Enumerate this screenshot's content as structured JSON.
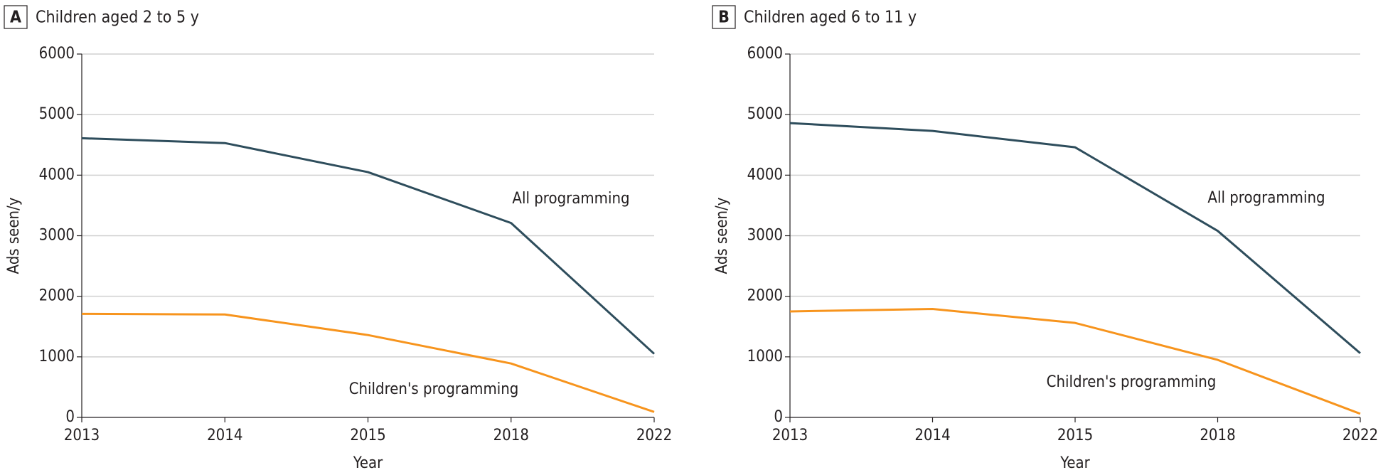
{
  "chart_data": [
    {
      "type": "line",
      "panel": "A",
      "title": "Children aged 2 to 5 y",
      "x_label": "Year",
      "y_label": "Ads seen/y",
      "categories": [
        "2013",
        "2014",
        "2015",
        "2018",
        "2022"
      ],
      "series": [
        {
          "name": "All programming",
          "color": "#2e4d5c",
          "values": [
            4610,
            4530,
            4050,
            3210,
            1050
          ]
        },
        {
          "name": "Children's programming",
          "color": "#f7941d",
          "values": [
            1710,
            1700,
            1360,
            890,
            90
          ]
        }
      ],
      "ylim": [
        0,
        6000
      ],
      "yticks": [
        0,
        1000,
        2000,
        3000,
        4000,
        5000,
        6000
      ],
      "grid": true
    },
    {
      "type": "line",
      "panel": "B",
      "title": "Children aged 6 to 11 y",
      "x_label": "Year",
      "y_label": "Ads seen/y",
      "categories": [
        "2013",
        "2014",
        "2015",
        "2018",
        "2022"
      ],
      "series": [
        {
          "name": "All programming",
          "color": "#2e4d5c",
          "values": [
            4860,
            4730,
            4460,
            3080,
            1060
          ]
        },
        {
          "name": "Children's programming",
          "color": "#f7941d",
          "values": [
            1750,
            1790,
            1560,
            950,
            60
          ]
        }
      ],
      "ylim": [
        0,
        6000
      ],
      "yticks": [
        0,
        1000,
        2000,
        3000,
        4000,
        5000,
        6000
      ],
      "grid": true
    }
  ]
}
